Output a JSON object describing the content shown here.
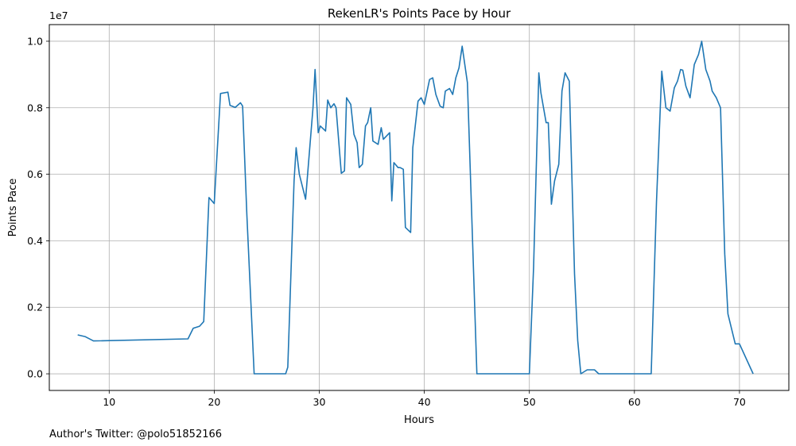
{
  "chart_data": {
    "type": "line",
    "title": "RekenLR's Points Pace by Hour",
    "xlabel": "Hours",
    "ylabel": "Points Pace",
    "y_offset_text": "1e7",
    "footer": "Author's Twitter: @polo51852166",
    "xlim": [
      4.3,
      74.7
    ],
    "ylim": [
      -0.05,
      1.05
    ],
    "x_ticks": [
      10,
      20,
      30,
      40,
      50,
      60,
      70
    ],
    "y_ticks": [
      0.0,
      0.2,
      0.4,
      0.6,
      0.8,
      1.0
    ],
    "x_tick_labels": [
      "10",
      "20",
      "30",
      "40",
      "50",
      "60",
      "70"
    ],
    "y_tick_labels": [
      "0.0",
      "0.2",
      "0.4",
      "0.6",
      "0.8",
      "1.0"
    ],
    "grid": true,
    "line_color": "#1f77b4",
    "series": [
      {
        "x": [
          7.0,
          7.7,
          8.5,
          17.5,
          18.0,
          18.6,
          19.0,
          19.5,
          20.0,
          20.6,
          21.3,
          21.5,
          22.0,
          22.5,
          22.7,
          23.1,
          23.8,
          26.8,
          27.0,
          27.6,
          27.8,
          28.1,
          28.7,
          29.4,
          29.6,
          29.9,
          30.1,
          30.6,
          30.8,
          31.1,
          31.4,
          31.6,
          32.1,
          32.4,
          32.6,
          33.0,
          33.3,
          33.6,
          33.8,
          34.1,
          34.4,
          34.6,
          34.9,
          35.1,
          35.6,
          35.9,
          36.1,
          36.4,
          36.7,
          36.9,
          37.1,
          37.5,
          37.7,
          38.0,
          38.2,
          38.7,
          38.9,
          39.4,
          39.7,
          40.0,
          40.5,
          40.8,
          41.1,
          41.5,
          41.8,
          42.0,
          42.4,
          42.7,
          43.0,
          43.3,
          43.6,
          44.1,
          45.0,
          50.0,
          50.4,
          50.9,
          51.1,
          51.6,
          51.8,
          52.1,
          52.4,
          52.8,
          53.1,
          53.4,
          53.8,
          54.3,
          54.6,
          54.9,
          55.5,
          56.2,
          56.6,
          61.6,
          62.1,
          62.6,
          63.0,
          63.4,
          63.8,
          64.1,
          64.4,
          64.6,
          64.9,
          65.3,
          65.7,
          66.1,
          66.4,
          66.8,
          67.2,
          67.4,
          67.8,
          68.2,
          68.6,
          68.9,
          69.6,
          70.0,
          71.3
        ],
        "y": [
          0.117,
          0.112,
          0.099,
          0.105,
          0.137,
          0.143,
          0.157,
          0.53,
          0.512,
          0.843,
          0.847,
          0.807,
          0.801,
          0.815,
          0.805,
          0.48,
          0.0,
          0.0,
          0.02,
          0.58,
          0.68,
          0.6,
          0.525,
          0.8,
          0.915,
          0.725,
          0.745,
          0.73,
          0.823,
          0.8,
          0.812,
          0.8,
          0.603,
          0.61,
          0.83,
          0.81,
          0.72,
          0.695,
          0.62,
          0.63,
          0.745,
          0.755,
          0.8,
          0.7,
          0.69,
          0.74,
          0.705,
          0.715,
          0.725,
          0.52,
          0.635,
          0.62,
          0.62,
          0.615,
          0.44,
          0.425,
          0.68,
          0.82,
          0.83,
          0.81,
          0.885,
          0.89,
          0.84,
          0.805,
          0.8,
          0.85,
          0.858,
          0.84,
          0.89,
          0.92,
          0.985,
          0.875,
          0.0,
          0.0,
          0.32,
          0.905,
          0.845,
          0.755,
          0.755,
          0.51,
          0.58,
          0.63,
          0.85,
          0.905,
          0.88,
          0.3,
          0.1,
          0.0,
          0.012,
          0.012,
          0.0,
          0.0,
          0.52,
          0.91,
          0.8,
          0.79,
          0.86,
          0.88,
          0.915,
          0.913,
          0.865,
          0.83,
          0.93,
          0.96,
          1.0,
          0.915,
          0.88,
          0.85,
          0.83,
          0.8,
          0.36,
          0.18,
          0.09,
          0.09,
          0.0
        ]
      }
    ]
  }
}
